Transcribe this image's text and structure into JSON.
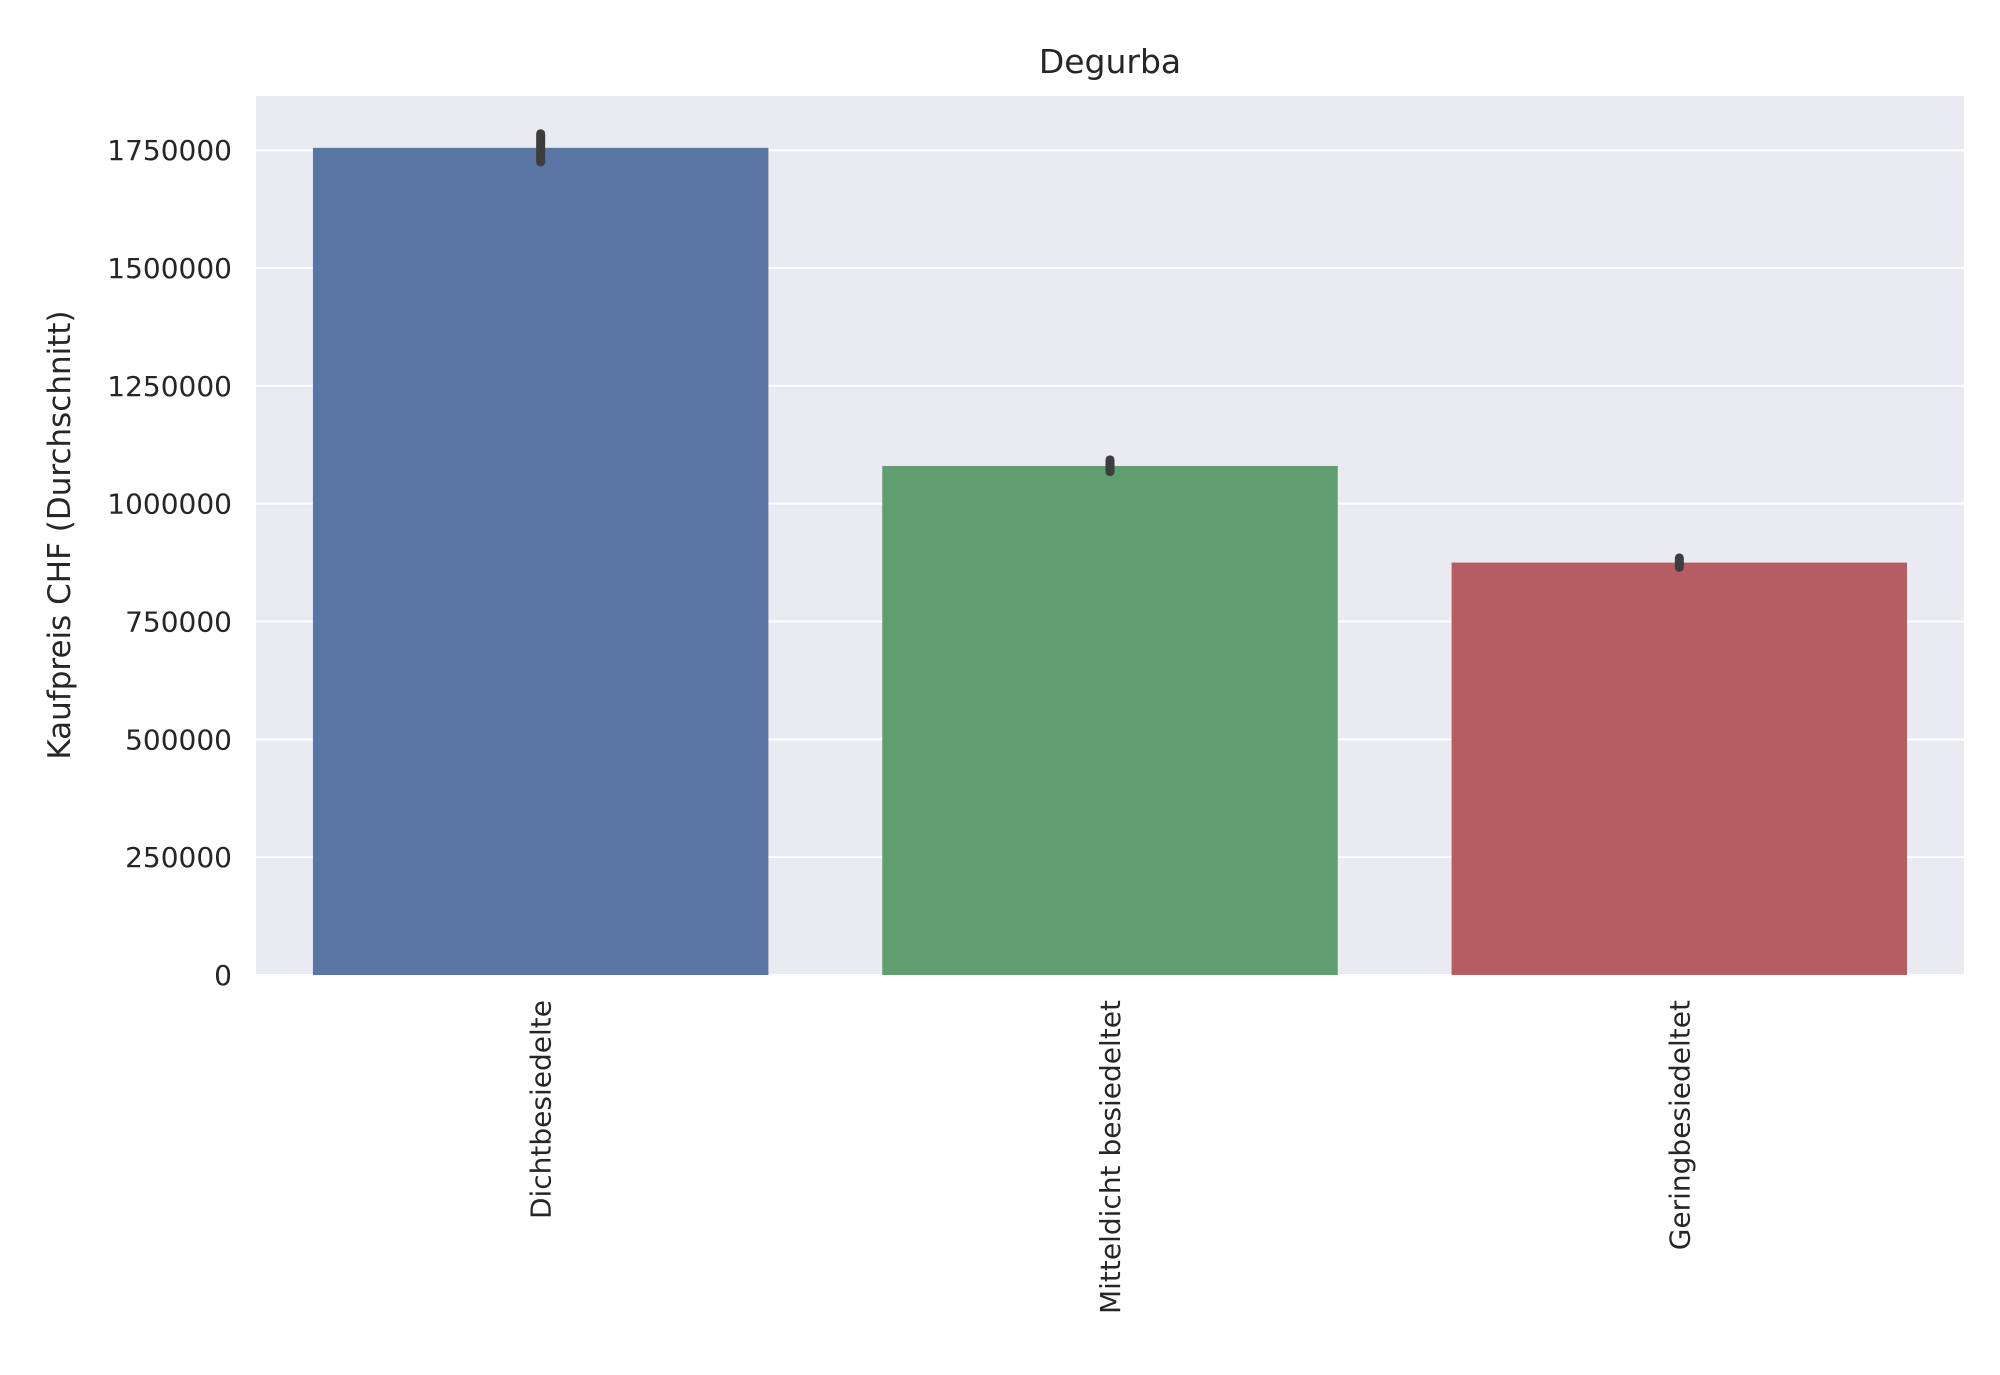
{
  "chart_data": {
    "type": "bar",
    "title": "Degurba",
    "xlabel": "",
    "ylabel": "Kaufpreis CHF (Durchschnitt)",
    "categories": [
      "Dichtbesiedelte",
      "Mitteldicht besiedeltet",
      "Geringbesiedeltet"
    ],
    "values": [
      1755000,
      1080000,
      875000
    ],
    "error_bars": [
      {
        "low": 1725000,
        "high": 1785000
      },
      {
        "low": 1068000,
        "high": 1093000
      },
      {
        "low": 865000,
        "high": 885000
      }
    ],
    "colors": [
      "#5975a4",
      "#5f9e6e",
      "#b55d60"
    ],
    "error_bar_color": "#3d3d3d",
    "background_color": "#eaeaf2",
    "grid": true,
    "grid_color": "#ffffff",
    "ylim": [
      0,
      1865000
    ],
    "yticks": [
      0,
      250000,
      500000,
      750000,
      1000000,
      1250000,
      1500000,
      1750000
    ],
    "ytick_labels": [
      "0",
      "250000",
      "500000",
      "750000",
      "1000000",
      "1250000",
      "1500000",
      "1750000"
    ],
    "xtick_rotation": "vertical"
  }
}
